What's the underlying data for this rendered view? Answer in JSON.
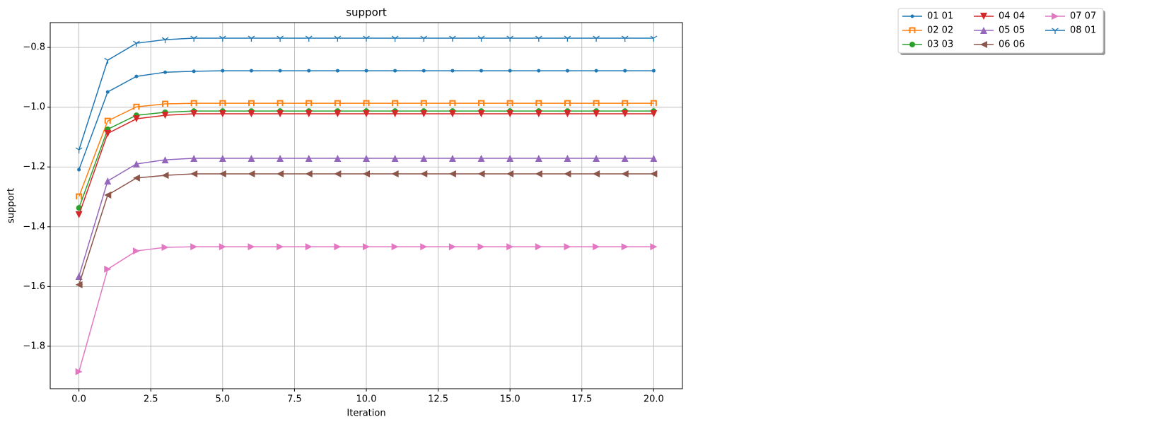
{
  "chart_data": {
    "type": "line",
    "title": "support",
    "x_label": "Iteration",
    "y_label": "support",
    "x": [
      0,
      1,
      2,
      3,
      4,
      5,
      6,
      7,
      8,
      9,
      10,
      11,
      12,
      13,
      14,
      15,
      16,
      17,
      18,
      19,
      20
    ],
    "xlim": [
      -1,
      21
    ],
    "ylim": [
      -1.942,
      -0.717
    ],
    "xticks": [
      {
        "value": 0,
        "label": "0.0"
      },
      {
        "value": 2.5,
        "label": "2.5"
      },
      {
        "value": 5,
        "label": "5.0"
      },
      {
        "value": 7.5,
        "label": "7.5"
      },
      {
        "value": 10,
        "label": "10.0"
      },
      {
        "value": 12.5,
        "label": "12.5"
      },
      {
        "value": 15,
        "label": "15.0"
      },
      {
        "value": 17.5,
        "label": "17.5"
      },
      {
        "value": 20,
        "label": "20.0"
      }
    ],
    "yticks": [
      {
        "value": -1.8,
        "label": "−1.8"
      },
      {
        "value": -1.6,
        "label": "−1.6"
      },
      {
        "value": -1.4,
        "label": "−1.4"
      },
      {
        "value": -1.2,
        "label": "−1.2"
      },
      {
        "value": -1.0,
        "label": "−1.0"
      },
      {
        "value": -0.8,
        "label": "−0.8"
      }
    ],
    "grid": true,
    "legend": "upper right",
    "series": [
      {
        "name": "01 01",
        "color": "#1f77b4",
        "marker": "point",
        "values": [
          -1.209,
          -0.949,
          -0.897,
          -0.883,
          -0.88,
          -0.878,
          -0.878,
          -0.878,
          -0.878,
          -0.878,
          -0.878,
          -0.878,
          -0.878,
          -0.878,
          -0.878,
          -0.878,
          -0.878,
          -0.878,
          -0.878,
          -0.878,
          -0.878
        ]
      },
      {
        "name": "02 02",
        "color": "#ff7f0e",
        "marker": "square",
        "values": [
          -1.299,
          -1.046,
          -0.999,
          -0.989,
          -0.987,
          -0.987,
          -0.987,
          -0.987,
          -0.987,
          -0.987,
          -0.987,
          -0.987,
          -0.987,
          -0.987,
          -0.987,
          -0.987,
          -0.987,
          -0.987,
          -0.987,
          -0.987,
          -0.987
        ]
      },
      {
        "name": "03 03",
        "color": "#2ca02c",
        "marker": "circle",
        "values": [
          -1.337,
          -1.074,
          -1.027,
          -1.017,
          -1.013,
          -1.013,
          -1.013,
          -1.013,
          -1.013,
          -1.013,
          -1.013,
          -1.013,
          -1.013,
          -1.013,
          -1.013,
          -1.013,
          -1.013,
          -1.013,
          -1.013,
          -1.013,
          -1.013
        ]
      },
      {
        "name": "04 04",
        "color": "#d62728",
        "marker": "triangle_down",
        "values": [
          -1.36,
          -1.088,
          -1.039,
          -1.027,
          -1.022,
          -1.022,
          -1.022,
          -1.022,
          -1.022,
          -1.022,
          -1.022,
          -1.022,
          -1.022,
          -1.022,
          -1.022,
          -1.022,
          -1.022,
          -1.022,
          -1.022,
          -1.022,
          -1.022
        ]
      },
      {
        "name": "05 05",
        "color": "#9467bd",
        "marker": "triangle_up",
        "values": [
          -1.566,
          -1.247,
          -1.19,
          -1.176,
          -1.171,
          -1.171,
          -1.171,
          -1.171,
          -1.171,
          -1.171,
          -1.171,
          -1.171,
          -1.171,
          -1.171,
          -1.171,
          -1.171,
          -1.171,
          -1.171,
          -1.171,
          -1.171,
          -1.171
        ]
      },
      {
        "name": "06 06",
        "color": "#8c564b",
        "marker": "triangle_left",
        "values": [
          -1.594,
          -1.294,
          -1.237,
          -1.228,
          -1.223,
          -1.223,
          -1.223,
          -1.223,
          -1.223,
          -1.223,
          -1.223,
          -1.223,
          -1.223,
          -1.223,
          -1.223,
          -1.223,
          -1.223,
          -1.223,
          -1.223,
          -1.223,
          -1.223
        ]
      },
      {
        "name": "07 07",
        "color": "#e377c2",
        "marker": "triangle_right",
        "values": [
          -1.885,
          -1.542,
          -1.481,
          -1.469,
          -1.467,
          -1.467,
          -1.467,
          -1.467,
          -1.467,
          -1.467,
          -1.467,
          -1.467,
          -1.467,
          -1.467,
          -1.467,
          -1.467,
          -1.467,
          -1.467,
          -1.467,
          -1.467,
          -1.467
        ]
      },
      {
        "name": "08 01",
        "color": "#1f77b4",
        "marker": "tri_down",
        "values": [
          -1.143,
          -0.843,
          -0.786,
          -0.774,
          -0.769,
          -0.769,
          -0.769,
          -0.769,
          -0.769,
          -0.769,
          -0.769,
          -0.769,
          -0.769,
          -0.769,
          -0.769,
          -0.769,
          -0.769,
          -0.769,
          -0.769,
          -0.769,
          -0.769
        ]
      }
    ]
  }
}
